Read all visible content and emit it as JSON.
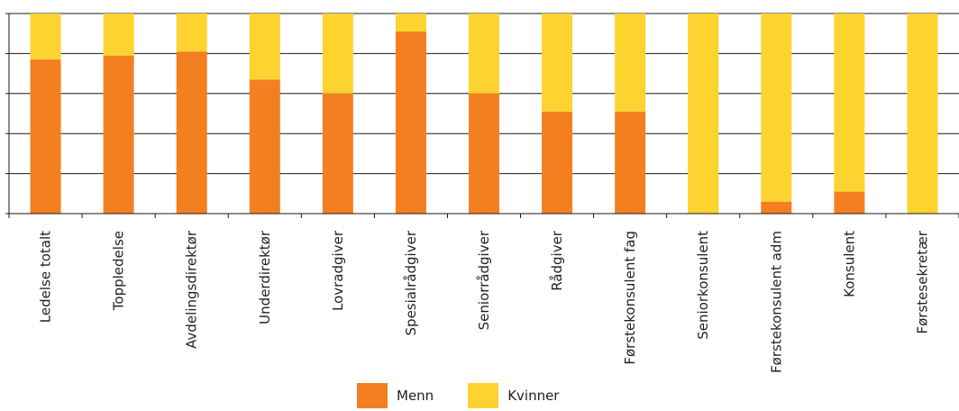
{
  "chart_data": {
    "type": "bar",
    "stacked": true,
    "percent": true,
    "categories": [
      "Ledelse totalt",
      "Toppledelse",
      "Avdelingsdirektør",
      "Underdirektør",
      "Lovradgiver",
      "Spesialrådgiver",
      "Seniorrådgiver",
      "Rådgiver",
      "Førstekonsulent fag",
      "Seniorkonsulent",
      "Førstekonsulent adm",
      "Konsulent",
      "Førstesekretær"
    ],
    "series": [
      {
        "name": "Menn",
        "color": "#F47F20",
        "values": [
          77,
          79,
          81,
          67,
          60,
          91,
          60,
          51,
          51,
          0,
          6,
          11,
          0
        ]
      },
      {
        "name": "Kvinner",
        "color": "#FCD32F",
        "values": [
          23,
          21,
          19,
          33,
          40,
          9,
          40,
          49,
          49,
          100,
          94,
          89,
          100
        ]
      }
    ],
    "ylim": [
      0,
      100
    ],
    "grid": true,
    "legend": "bottom"
  }
}
